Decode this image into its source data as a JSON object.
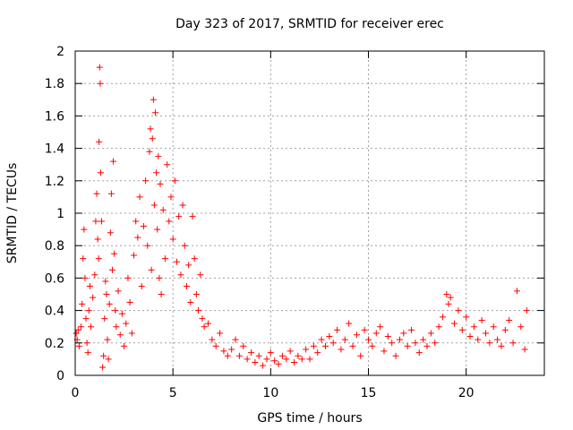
{
  "chart_data": {
    "type": "scatter",
    "title": "Day 323 of 2017, SRMTID for receiver erec",
    "xlabel": "GPS time / hours",
    "ylabel": "SRMTID / TECUs",
    "xlim": [
      0,
      24
    ],
    "ylim": [
      0,
      2
    ],
    "xticks": [
      "0",
      "5",
      "10",
      "15",
      "20"
    ],
    "yticks": [
      "0",
      "0.2",
      "0.4",
      "0.6",
      "0.8",
      "1",
      "1.2",
      "1.4",
      "1.6",
      "1.8",
      "2"
    ],
    "xtick_values": [
      0,
      5,
      10,
      15,
      20
    ],
    "ytick_values": [
      0,
      0.2,
      0.4,
      0.6,
      0.8,
      1,
      1.2,
      1.4,
      1.6,
      1.8,
      2
    ],
    "grid": true,
    "marker": "+",
    "color": "#ff0000",
    "series": [
      {
        "name": "SRMTID",
        "points": [
          [
            0.05,
            0.26
          ],
          [
            0.1,
            0.22
          ],
          [
            0.15,
            0.28
          ],
          [
            0.2,
            0.18
          ],
          [
            0.3,
            0.3
          ],
          [
            0.35,
            0.44
          ],
          [
            0.4,
            0.72
          ],
          [
            0.45,
            0.9
          ],
          [
            0.5,
            0.6
          ],
          [
            0.55,
            0.35
          ],
          [
            0.6,
            0.2
          ],
          [
            0.65,
            0.14
          ],
          [
            0.7,
            0.4
          ],
          [
            0.75,
            0.55
          ],
          [
            0.8,
            0.3
          ],
          [
            0.9,
            0.48
          ],
          [
            1.0,
            0.62
          ],
          [
            1.05,
            0.95
          ],
          [
            1.1,
            1.12
          ],
          [
            1.15,
            0.84
          ],
          [
            1.2,
            0.72
          ],
          [
            1.22,
            1.44
          ],
          [
            1.25,
            1.9
          ],
          [
            1.28,
            1.8
          ],
          [
            1.3,
            1.25
          ],
          [
            1.35,
            0.95
          ],
          [
            1.4,
            0.05
          ],
          [
            1.45,
            0.12
          ],
          [
            1.5,
            0.35
          ],
          [
            1.55,
            0.58
          ],
          [
            1.6,
            0.5
          ],
          [
            1.65,
            0.22
          ],
          [
            1.7,
            0.1
          ],
          [
            1.75,
            0.44
          ],
          [
            1.8,
            0.88
          ],
          [
            1.85,
            1.12
          ],
          [
            1.9,
            0.65
          ],
          [
            1.95,
            1.32
          ],
          [
            2.0,
            0.75
          ],
          [
            2.05,
            0.4
          ],
          [
            2.1,
            0.3
          ],
          [
            2.2,
            0.52
          ],
          [
            2.3,
            0.25
          ],
          [
            2.4,
            0.38
          ],
          [
            2.5,
            0.18
          ],
          [
            2.6,
            0.32
          ],
          [
            2.7,
            0.6
          ],
          [
            2.8,
            0.45
          ],
          [
            2.9,
            0.26
          ],
          [
            3.0,
            0.74
          ],
          [
            3.1,
            0.95
          ],
          [
            3.2,
            0.85
          ],
          [
            3.3,
            1.1
          ],
          [
            3.4,
            0.55
          ],
          [
            3.5,
            0.92
          ],
          [
            3.6,
            1.2
          ],
          [
            3.7,
            0.8
          ],
          [
            3.8,
            1.38
          ],
          [
            3.85,
            1.52
          ],
          [
            3.9,
            0.65
          ],
          [
            3.95,
            1.46
          ],
          [
            4.0,
            1.7
          ],
          [
            4.05,
            1.05
          ],
          [
            4.1,
            1.62
          ],
          [
            4.15,
            1.25
          ],
          [
            4.2,
            0.9
          ],
          [
            4.25,
            1.35
          ],
          [
            4.3,
            0.6
          ],
          [
            4.35,
            1.18
          ],
          [
            4.4,
            0.5
          ],
          [
            4.5,
            1.02
          ],
          [
            4.6,
            0.72
          ],
          [
            4.7,
            1.3
          ],
          [
            4.8,
            0.95
          ],
          [
            4.9,
            1.1
          ],
          [
            5.0,
            0.84
          ],
          [
            5.1,
            1.2
          ],
          [
            5.2,
            0.7
          ],
          [
            5.3,
            0.98
          ],
          [
            5.4,
            0.62
          ],
          [
            5.5,
            1.05
          ],
          [
            5.6,
            0.8
          ],
          [
            5.7,
            0.55
          ],
          [
            5.8,
            0.68
          ],
          [
            5.9,
            0.45
          ],
          [
            6.0,
            0.98
          ],
          [
            6.1,
            0.72
          ],
          [
            6.2,
            0.5
          ],
          [
            6.3,
            0.4
          ],
          [
            6.4,
            0.62
          ],
          [
            6.5,
            0.35
          ],
          [
            6.6,
            0.3
          ],
          [
            6.8,
            0.32
          ],
          [
            7.0,
            0.22
          ],
          [
            7.2,
            0.18
          ],
          [
            7.4,
            0.26
          ],
          [
            7.6,
            0.15
          ],
          [
            7.8,
            0.12
          ],
          [
            8.0,
            0.16
          ],
          [
            8.2,
            0.22
          ],
          [
            8.4,
            0.12
          ],
          [
            8.6,
            0.18
          ],
          [
            8.8,
            0.1
          ],
          [
            9.0,
            0.14
          ],
          [
            9.2,
            0.08
          ],
          [
            9.4,
            0.12
          ],
          [
            9.6,
            0.06
          ],
          [
            9.8,
            0.1
          ],
          [
            10.0,
            0.14
          ],
          [
            10.2,
            0.09
          ],
          [
            10.4,
            0.07
          ],
          [
            10.6,
            0.12
          ],
          [
            10.8,
            0.1
          ],
          [
            11.0,
            0.15
          ],
          [
            11.2,
            0.08
          ],
          [
            11.4,
            0.12
          ],
          [
            11.6,
            0.1
          ],
          [
            11.8,
            0.16
          ],
          [
            12.0,
            0.1
          ],
          [
            12.2,
            0.18
          ],
          [
            12.4,
            0.14
          ],
          [
            12.6,
            0.22
          ],
          [
            12.8,
            0.18
          ],
          [
            13.0,
            0.24
          ],
          [
            13.2,
            0.2
          ],
          [
            13.4,
            0.28
          ],
          [
            13.6,
            0.16
          ],
          [
            13.8,
            0.22
          ],
          [
            14.0,
            0.32
          ],
          [
            14.2,
            0.18
          ],
          [
            14.4,
            0.25
          ],
          [
            14.6,
            0.12
          ],
          [
            14.8,
            0.28
          ],
          [
            15.0,
            0.22
          ],
          [
            15.2,
            0.18
          ],
          [
            15.4,
            0.26
          ],
          [
            15.6,
            0.3
          ],
          [
            15.8,
            0.15
          ],
          [
            16.0,
            0.24
          ],
          [
            16.2,
            0.2
          ],
          [
            16.4,
            0.12
          ],
          [
            16.6,
            0.22
          ],
          [
            16.8,
            0.26
          ],
          [
            17.0,
            0.18
          ],
          [
            17.2,
            0.28
          ],
          [
            17.4,
            0.2
          ],
          [
            17.6,
            0.14
          ],
          [
            17.8,
            0.22
          ],
          [
            18.0,
            0.18
          ],
          [
            18.2,
            0.26
          ],
          [
            18.4,
            0.2
          ],
          [
            18.6,
            0.3
          ],
          [
            18.8,
            0.36
          ],
          [
            19.0,
            0.5
          ],
          [
            19.1,
            0.44
          ],
          [
            19.2,
            0.48
          ],
          [
            19.4,
            0.32
          ],
          [
            19.6,
            0.4
          ],
          [
            19.8,
            0.28
          ],
          [
            20.0,
            0.36
          ],
          [
            20.2,
            0.24
          ],
          [
            20.4,
            0.3
          ],
          [
            20.6,
            0.22
          ],
          [
            20.8,
            0.34
          ],
          [
            21.0,
            0.26
          ],
          [
            21.2,
            0.2
          ],
          [
            21.4,
            0.3
          ],
          [
            21.6,
            0.22
          ],
          [
            21.8,
            0.18
          ],
          [
            22.0,
            0.28
          ],
          [
            22.2,
            0.34
          ],
          [
            22.4,
            0.2
          ],
          [
            22.6,
            0.52
          ],
          [
            22.8,
            0.3
          ],
          [
            23.0,
            0.16
          ],
          [
            23.1,
            0.4
          ]
        ]
      }
    ]
  }
}
